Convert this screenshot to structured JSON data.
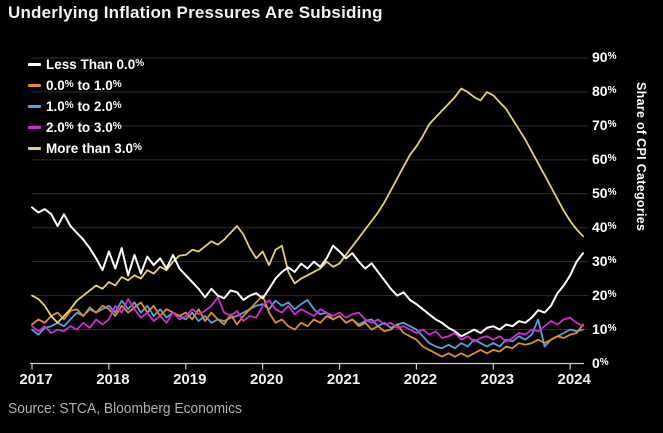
{
  "title": "Underlying Inflation Pressures Are Subsiding",
  "source": "Source: STCA, Bloomberg Economics",
  "colors": {
    "background": "#000000",
    "gridline": "#303030",
    "axis_line": "#cccccc",
    "text": "#ffffff",
    "source_text": "#b6b1a9"
  },
  "axis": {
    "y_label": "Share of CPI Categories",
    "y_ticks": [
      "0%",
      "10%",
      "20%",
      "30%",
      "40%",
      "50%",
      "60%",
      "70%",
      "80%",
      "90%"
    ],
    "x_ticks": [
      "2017",
      "2018",
      "2019",
      "2020",
      "2021",
      "2022",
      "2023",
      "2024"
    ]
  },
  "chart_data": {
    "type": "line",
    "title": "Underlying Inflation Pressures Are Subsiding",
    "xlabel": "",
    "ylabel": "Share of CPI Categories",
    "ylim": [
      0,
      90
    ],
    "grid": true,
    "legend_position": "top-left",
    "x_unit": "monthly",
    "x_range": [
      "2017-01",
      "2024-03"
    ],
    "series": [
      {
        "name": "Less Than 0.0%",
        "color": "#ffffff",
        "values": [
          46,
          44.5,
          45.5,
          44,
          40.5,
          44,
          40.5,
          38.5,
          36.5,
          34,
          31,
          27.5,
          33,
          28,
          34,
          26,
          32,
          26.5,
          31.5,
          29,
          31,
          28,
          32,
          28,
          26,
          24,
          22,
          19.5,
          22,
          20,
          19.2,
          21.5,
          21,
          18.7,
          20,
          20.7,
          19.2,
          22,
          25,
          27,
          28.3,
          27,
          29.4,
          28,
          30,
          28.5,
          31,
          34.7,
          33,
          31,
          32.5,
          30,
          28,
          29.5,
          27,
          24.5,
          22,
          20,
          21,
          18.7,
          17.5,
          16,
          14.5,
          13,
          12,
          10.5,
          9.5,
          8,
          9,
          10,
          9,
          10.5,
          11,
          10,
          11.5,
          11,
          12.5,
          12,
          13.5,
          15.7,
          15,
          17,
          20.7,
          23,
          26,
          30,
          32.5
        ]
      },
      {
        "name": "0.0% to 1.0%",
        "color": "#e08b2d",
        "values": [
          11.5,
          13,
          12,
          14,
          15,
          13,
          15.5,
          16,
          14,
          16,
          15,
          17,
          16,
          14,
          17,
          15,
          16.5,
          18,
          15,
          17,
          14,
          16,
          15,
          14,
          15,
          13,
          16,
          12.5,
          15,
          13,
          11.5,
          14.5,
          11.5,
          14,
          16,
          18,
          20,
          15,
          12,
          13,
          11,
          10,
          12,
          11,
          13,
          12,
          14,
          13,
          14,
          12,
          13,
          11,
          12,
          10,
          11,
          9.5,
          10,
          11.5,
          9,
          8,
          7,
          5,
          4,
          3,
          2,
          3,
          2,
          3,
          2,
          3,
          4,
          3,
          4,
          3.5,
          5,
          4.5,
          6,
          5.5,
          6,
          7,
          6,
          7,
          8,
          7.5,
          8.5,
          9,
          11.5
        ]
      },
      {
        "name": "1.0% to 2.0%",
        "color": "#56a0dd",
        "values": [
          10,
          8.5,
          10.5,
          11,
          12,
          11,
          13,
          15,
          14,
          16.5,
          15,
          16,
          17,
          15,
          18.5,
          16,
          18,
          15,
          17,
          14,
          16,
          13.5,
          15,
          14,
          13,
          15,
          12.5,
          14,
          12,
          13,
          12.5,
          13.5,
          14,
          15,
          16,
          17,
          17.5,
          16,
          18.5,
          17,
          18,
          16,
          17.5,
          18.7,
          16,
          14.5,
          15,
          13,
          14,
          12,
          13,
          11.5,
          12.5,
          13,
          11,
          12,
          10.5,
          11.5,
          12,
          11,
          10,
          8,
          6,
          5,
          4.5,
          5.5,
          4.5,
          6,
          5,
          7,
          6,
          5,
          6,
          5,
          7,
          6.5,
          8,
          7,
          8.5,
          13,
          5,
          7,
          8,
          9,
          10,
          9.5,
          10
        ]
      },
      {
        "name": "2.0% to 3.0%",
        "color": "#d02dd0",
        "values": [
          11,
          9.5,
          11,
          9,
          10,
          9.5,
          11,
          10,
          12,
          10.5,
          13,
          11.5,
          13,
          17,
          15,
          19,
          16,
          13.5,
          15,
          12.5,
          14,
          12,
          15,
          13,
          14,
          16,
          14.5,
          15.5,
          17,
          19.5,
          15,
          14,
          15.5,
          12.5,
          14,
          13.5,
          17,
          18.7,
          16,
          15,
          17,
          14.5,
          16,
          15,
          14,
          16,
          15,
          14,
          15,
          13.5,
          14.5,
          15,
          13,
          12,
          13,
          11.5,
          12,
          10.5,
          11,
          10,
          9,
          10,
          8.5,
          9.5,
          7.5,
          8,
          9,
          7,
          8,
          6.5,
          7.5,
          8,
          7,
          8,
          6.5,
          7.5,
          9,
          8.5,
          10,
          9.5,
          11,
          12.5,
          11.5,
          13,
          13.5,
          12,
          11
        ]
      },
      {
        "name": "More than 3.0%",
        "color": "#e5d26f",
        "values": [
          20,
          19,
          17,
          14,
          12,
          14,
          16,
          18.5,
          20,
          21.5,
          23,
          22,
          24,
          23,
          25.5,
          24.5,
          26,
          25,
          27.5,
          26.5,
          28.5,
          27.5,
          30,
          31.8,
          32,
          33.5,
          33,
          34.5,
          36,
          35,
          36.5,
          38.5,
          40.5,
          38,
          34,
          31,
          33,
          29,
          33.5,
          34.7,
          27,
          23.6,
          25,
          26,
          27,
          28,
          30,
          28.5,
          29.5,
          32,
          34.5,
          37,
          39.5,
          42,
          44.5,
          47.5,
          51,
          54.5,
          58,
          61.5,
          64,
          67,
          70.5,
          72.5,
          74.5,
          76.5,
          78.5,
          81,
          80,
          78.5,
          77.5,
          80,
          79,
          77,
          75,
          72,
          69,
          66,
          62.5,
          59,
          55.5,
          52,
          48.5,
          45,
          42,
          39.5,
          37.5
        ]
      }
    ]
  }
}
